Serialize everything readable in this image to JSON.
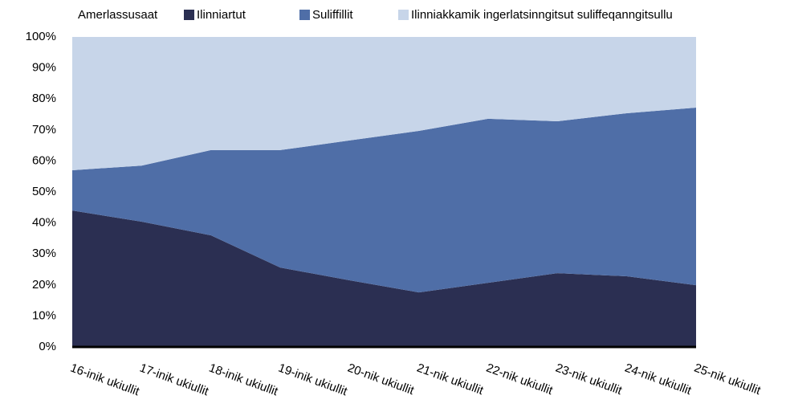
{
  "chart_data": {
    "type": "stacked_area",
    "legend_title": "Amerlassusaat",
    "categories": [
      "16-inik ukiullit",
      "17-inik ukiullit",
      "18-inik ukiullit",
      "19-inik ukiullit",
      "20-nik ukiullit",
      "21-nik ukiullit",
      "22-nik ukiullit",
      "23-nik ukiullit",
      "24-nik ukiullit",
      "25-nik ukiullit"
    ],
    "series": [
      {
        "name": "Ilinniartut",
        "color": "#2b2f52",
        "values": [
          44.0,
          40.4,
          36.0,
          25.6,
          21.5,
          17.6,
          20.7,
          23.8,
          22.8,
          19.9
        ]
      },
      {
        "name": "Suliffillit",
        "color": "#4f6ea7",
        "values": [
          13.0,
          18.1,
          27.5,
          37.9,
          45.1,
          52.1,
          52.9,
          49.0,
          52.6,
          57.3
        ]
      },
      {
        "name": "Ilinniakkamik ingerlatsinngitsut suliffeqanngitsullu",
        "color": "#c7d5e9",
        "values": [
          43.0,
          41.5,
          36.5,
          36.5,
          33.4,
          30.3,
          26.4,
          27.2,
          24.6,
          22.8
        ]
      }
    ],
    "ylim": [
      0,
      100
    ],
    "yticks": [
      {
        "value": 0,
        "label": "0%"
      },
      {
        "value": 10,
        "label": "10%"
      },
      {
        "value": 20,
        "label": "20%"
      },
      {
        "value": 30,
        "label": "30%"
      },
      {
        "value": 40,
        "label": "40%"
      },
      {
        "value": 50,
        "label": "50%"
      },
      {
        "value": 60,
        "label": "60%"
      },
      {
        "value": 70,
        "label": "70%"
      },
      {
        "value": 80,
        "label": "80%"
      },
      {
        "value": 90,
        "label": "90%"
      },
      {
        "value": 100,
        "label": "100%"
      }
    ],
    "legend": "top"
  }
}
